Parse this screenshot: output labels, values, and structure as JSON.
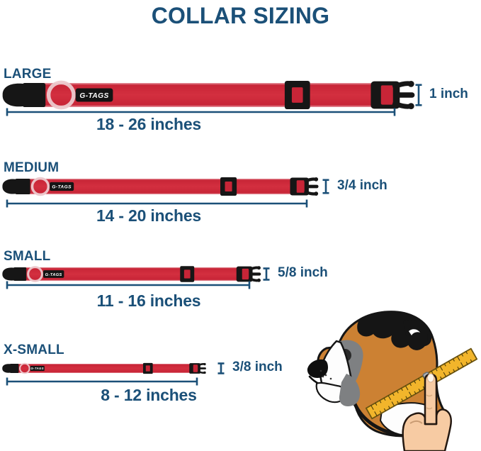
{
  "title": "COLLAR SIZING",
  "brand_label": "G-TAGS",
  "colors": {
    "accent_blue": "#1B5078",
    "collar_red": "#C82537",
    "collar_red_light": "#E79DA6",
    "buckle_black": "#161616",
    "tape_yellow": "#F2B52B"
  },
  "sizes": [
    {
      "name": "LARGE",
      "length_range": "18 - 26 inches",
      "width": "1 inch"
    },
    {
      "name": "MEDIUM",
      "length_range": "14 - 20 inches",
      "width": "3/4 inch"
    },
    {
      "name": "SMALL",
      "length_range": "11 - 16 inches",
      "width": "5/8 inch"
    },
    {
      "name": "X-SMALL",
      "length_range": "8 - 12 inches",
      "width": "3/8 inch"
    }
  ],
  "illustration": {
    "name": "boxer-dog-neck-measurement",
    "description": "Boxer dog head with a yellow measuring tape around its neck held by a hand"
  }
}
